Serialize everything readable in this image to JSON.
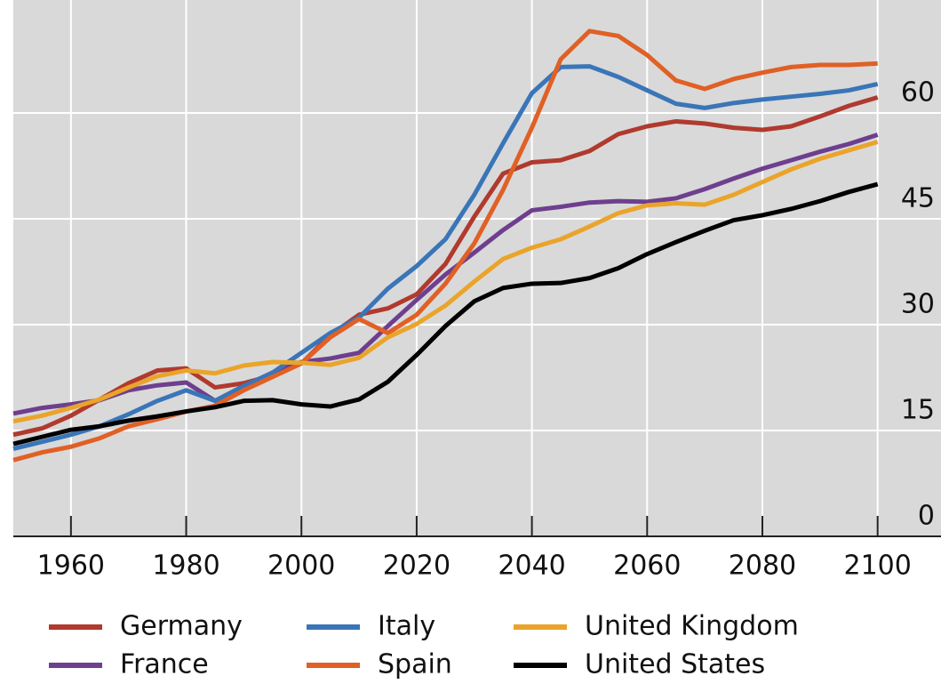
{
  "chart_data": {
    "type": "line",
    "x": [
      1950,
      1955,
      1960,
      1965,
      1970,
      1975,
      1980,
      1985,
      1990,
      1995,
      2000,
      2005,
      2010,
      2015,
      2020,
      2025,
      2030,
      2035,
      2040,
      2045,
      2050,
      2055,
      2060,
      2065,
      2070,
      2075,
      2080,
      2085,
      2090,
      2095,
      2100
    ],
    "xlim": [
      1950,
      2111
    ],
    "xticks": [
      1960,
      1980,
      2000,
      2020,
      2040,
      2060,
      2080,
      2100
    ],
    "ylim": [
      0,
      76
    ],
    "yticks": [
      0,
      15,
      30,
      45,
      60
    ],
    "grid": true,
    "series": [
      {
        "name": "Germany",
        "color": "#b03a2e",
        "values": [
          14.4,
          15.3,
          17.1,
          19.4,
          21.7,
          23.5,
          23.8,
          21.1,
          21.7,
          22.8,
          24.5,
          28.5,
          31.4,
          32.3,
          34.3,
          38.6,
          45.3,
          51.4,
          53,
          53.3,
          54.6,
          57,
          58.1,
          58.8,
          58.5,
          57.9,
          57.6,
          58.1,
          59.5,
          61,
          62.2
        ]
      },
      {
        "name": "France",
        "color": "#6e3f8e",
        "values": [
          17.4,
          18.2,
          18.7,
          19.3,
          20.7,
          21.4,
          21.8,
          19.2,
          21.3,
          23.2,
          24.7,
          25.2,
          26,
          29.8,
          33.5,
          37.1,
          40.2,
          43.4,
          46.2,
          46.7,
          47.3,
          47.5,
          47.4,
          47.9,
          49.2,
          50.7,
          52.1,
          53.3,
          54.5,
          55.6,
          56.9
        ]
      },
      {
        "name": "Italy",
        "color": "#3a75b8",
        "values": [
          12.4,
          13.4,
          14.4,
          15.6,
          17.3,
          19.2,
          20.7,
          19.2,
          21.3,
          23.2,
          26,
          28.8,
          31,
          35.1,
          38.3,
          42.1,
          48.4,
          55.7,
          62.8,
          66.5,
          66.6,
          65.1,
          63.2,
          61.3,
          60.7,
          61.4,
          61.9,
          62.3,
          62.7,
          63.2,
          64.1
        ]
      },
      {
        "name": "Spain",
        "color": "#e06025",
        "values": [
          10.8,
          11.9,
          12.7,
          13.9,
          15.6,
          16.6,
          17.7,
          18.5,
          20.7,
          22.6,
          24.5,
          28.2,
          30.8,
          28.8,
          31.4,
          35.8,
          41.5,
          49.1,
          57.9,
          67.6,
          71.6,
          70.9,
          68.2,
          64.6,
          63.4,
          64.8,
          65.7,
          66.5,
          66.8,
          66.8,
          67
        ]
      },
      {
        "name": "United Kingdom",
        "color": "#eaa42a",
        "values": [
          16.3,
          17.1,
          18.2,
          19.4,
          21.1,
          22.7,
          23.5,
          23.1,
          24.2,
          24.7,
          24.6,
          24.3,
          25.3,
          28.2,
          30.1,
          32.7,
          36.1,
          39.3,
          40.9,
          42.1,
          43.9,
          45.8,
          46.9,
          47.2,
          47,
          48.4,
          50.2,
          52,
          53.5,
          54.7,
          55.9
        ]
      },
      {
        "name": "United States",
        "color": "#000000",
        "values": [
          13.1,
          14.1,
          15.1,
          15.6,
          16.4,
          17,
          17.7,
          18.3,
          19.2,
          19.3,
          18.7,
          18.4,
          19.4,
          21.9,
          25.7,
          29.8,
          33.3,
          35.2,
          35.8,
          35.9,
          36.6,
          38,
          40,
          41.7,
          43.3,
          44.8,
          45.5,
          46.4,
          47.5,
          48.8,
          49.9
        ]
      }
    ]
  }
}
